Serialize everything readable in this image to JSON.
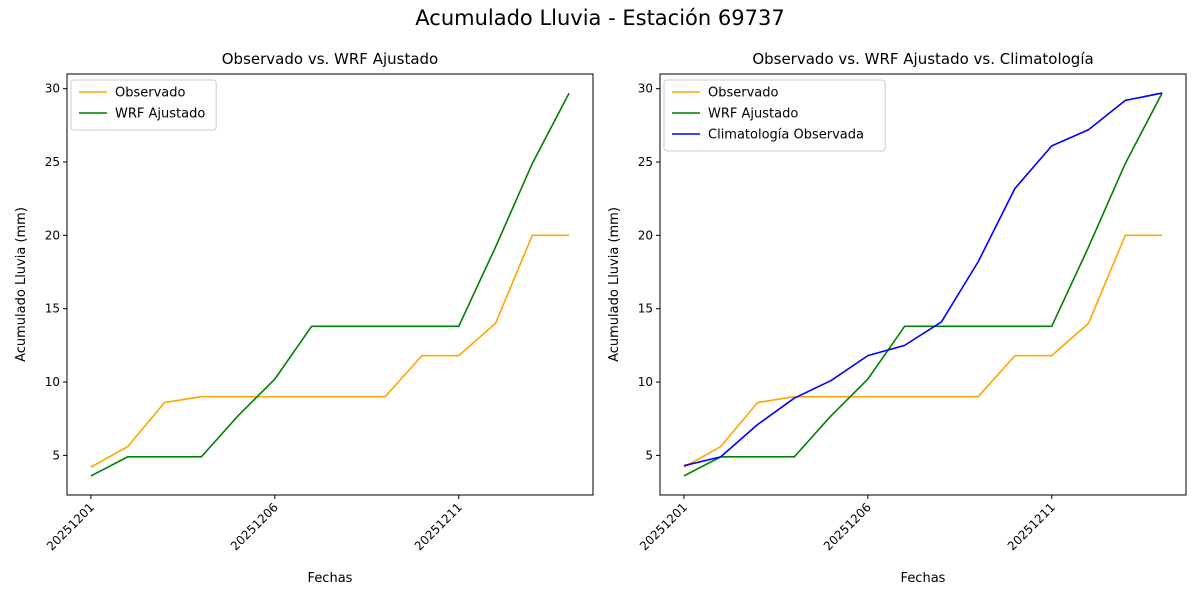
{
  "figure": {
    "title": "Acumulado Lluvia - Estación 69737"
  },
  "chart_data": [
    {
      "type": "line",
      "title": "Observado vs. WRF Ajustado",
      "xlabel": "Fechas",
      "ylabel": "Acumulado Lluvia (mm)",
      "x": [
        "20251201",
        "20251202",
        "20251203",
        "20251204",
        "20251205",
        "20251206",
        "20251207",
        "20251208",
        "20251209",
        "20251210",
        "20251211",
        "20251212",
        "20251213",
        "20251214"
      ],
      "xticks": [
        "20251201",
        "20251206",
        "20251211"
      ],
      "yticks": [
        5,
        10,
        15,
        20,
        25,
        30
      ],
      "ylim": [
        2.3,
        31.0
      ],
      "grid": false,
      "legend": "upper-left",
      "series": [
        {
          "name": "Observado",
          "color": "#FFA500",
          "values": [
            4.2,
            5.6,
            8.6,
            9.0,
            9.0,
            9.0,
            9.0,
            9.0,
            9.0,
            11.8,
            11.8,
            14.0,
            20.0,
            20.0
          ]
        },
        {
          "name": "WRF Ajustado",
          "color": "#008000",
          "values": [
            3.6,
            4.9,
            4.9,
            4.9,
            7.7,
            10.2,
            13.8,
            13.8,
            13.8,
            13.8,
            13.8,
            19.2,
            24.9,
            29.7
          ]
        }
      ]
    },
    {
      "type": "line",
      "title": "Observado vs. WRF Ajustado vs. Climatología",
      "xlabel": "Fechas",
      "ylabel": "Acumulado Lluvia (mm)",
      "x": [
        "20251201",
        "20251202",
        "20251203",
        "20251204",
        "20251205",
        "20251206",
        "20251207",
        "20251208",
        "20251209",
        "20251210",
        "20251211",
        "20251212",
        "20251213",
        "20251214"
      ],
      "xticks": [
        "20251201",
        "20251206",
        "20251211"
      ],
      "yticks": [
        5,
        10,
        15,
        20,
        25,
        30
      ],
      "ylim": [
        2.3,
        31.0
      ],
      "grid": false,
      "legend": "upper-left",
      "series": [
        {
          "name": "Observado",
          "color": "#FFA500",
          "values": [
            4.2,
            5.6,
            8.6,
            9.0,
            9.0,
            9.0,
            9.0,
            9.0,
            9.0,
            11.8,
            11.8,
            14.0,
            20.0,
            20.0
          ]
        },
        {
          "name": "WRF Ajustado",
          "color": "#008000",
          "values": [
            3.6,
            4.9,
            4.9,
            4.9,
            7.7,
            10.2,
            13.8,
            13.8,
            13.8,
            13.8,
            13.8,
            19.2,
            24.9,
            29.7
          ]
        },
        {
          "name": "Climatología Observada",
          "color": "#0000FF",
          "values": [
            4.3,
            4.9,
            7.1,
            8.9,
            10.1,
            11.8,
            12.5,
            14.1,
            18.2,
            23.2,
            26.1,
            27.2,
            29.2,
            29.7
          ]
        }
      ]
    }
  ]
}
